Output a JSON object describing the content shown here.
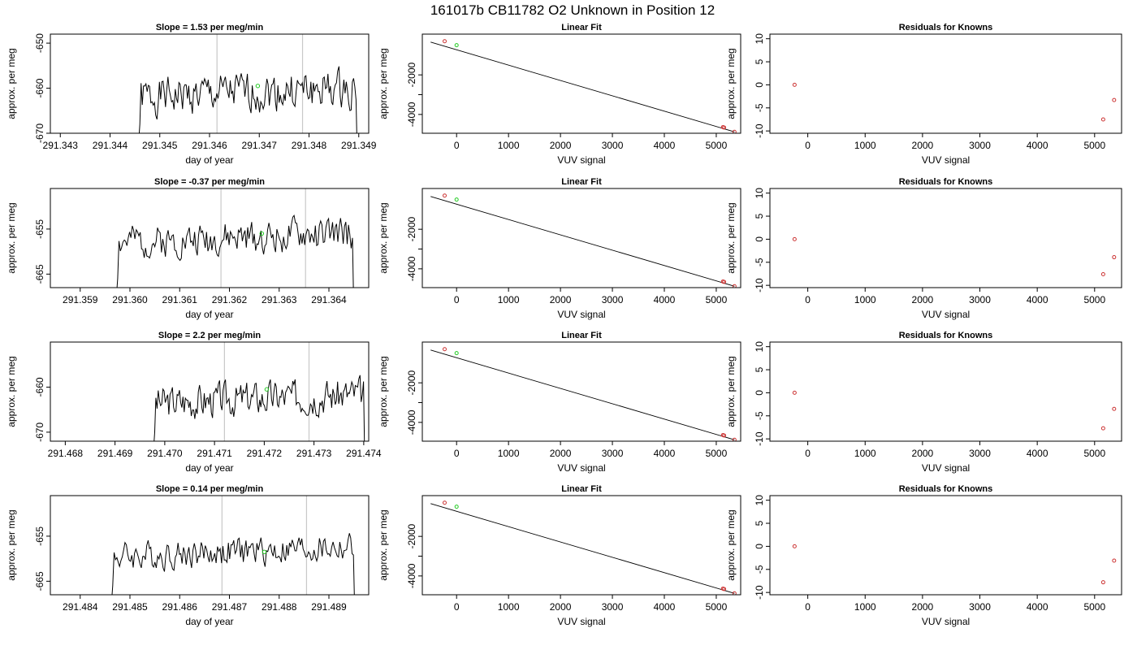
{
  "figure_title": "161017b      CB11782    O2 Unknown in Position  12",
  "chart_data": [
    {
      "type": "line",
      "title": "Slope =  1.53  per meg/min",
      "xlabel": "day of year",
      "ylabel": "approx. per meg",
      "xlim": [
        291.3428,
        291.3492
      ],
      "ylim": [
        -670,
        -648
      ],
      "xticks": [
        291.343,
        291.344,
        291.345,
        291.346,
        291.347,
        291.348,
        291.349
      ],
      "xtick_labels": [
        "291.343",
        "291.344",
        "291.345",
        "291.346",
        "291.347",
        "291.348",
        "291.349"
      ],
      "yticks": [
        -670,
        -660,
        -650
      ],
      "ytick_labels": [
        "-670",
        "-660",
        "-650"
      ],
      "vlines": [
        291.34615,
        291.34787
      ],
      "series_start": 291.34455,
      "series_end": 291.34897,
      "series_mean": -661,
      "series_amp": 4.2,
      "marker": {
        "x": 291.34697,
        "y": -659.5,
        "color": "#22cc22"
      },
      "seed": 1
    },
    {
      "type": "line",
      "title": "Linear Fit",
      "xlabel": "VUV signal",
      "ylabel": "approx. per meg",
      "xlim": [
        -660,
        5470
      ],
      "ylim": [
        -4950,
        60
      ],
      "xticks": [
        0,
        1000,
        2000,
        3000,
        4000,
        5000
      ],
      "xtick_labels": [
        "0",
        "1000",
        "2000",
        "3000",
        "4000",
        "5000"
      ],
      "yticks": [
        -4000,
        -3000,
        -2000
      ],
      "ytick_labels": [
        "-4000",
        "",
        "-2000"
      ],
      "line": {
        "x": [
          -500,
          5350
        ],
        "y": [
          -345,
          -4880
        ]
      },
      "points_known": {
        "x": [
          -230,
          5130,
          5150,
          5350
        ],
        "y": [
          -300,
          -4640,
          -4660,
          -4880
        ],
        "color": "#cc3333"
      },
      "points_unknown": {
        "x": [
          0
        ],
        "y": [
          -500
        ],
        "color": "#22cc22"
      }
    },
    {
      "type": "scatter",
      "title": "Residuals for Knowns",
      "xlabel": "VUV signal",
      "ylabel": "approx. per meg",
      "xlim": [
        -660,
        5470
      ],
      "ylim": [
        -10.5,
        11
      ],
      "xticks": [
        0,
        1000,
        2000,
        3000,
        4000,
        5000
      ],
      "xtick_labels": [
        "0",
        "1000",
        "2000",
        "3000",
        "4000",
        "5000"
      ],
      "yticks": [
        -10,
        -5,
        0,
        5,
        10
      ],
      "ytick_labels": [
        "-10",
        "-5",
        "0",
        "5",
        "10"
      ],
      "points": {
        "x": [
          -230,
          5150,
          5340
        ],
        "y": [
          0,
          -7.5,
          -3.3
        ],
        "color": "#cc3333"
      }
    },
    {
      "type": "line",
      "title": "Slope =  -0.37  per meg/min",
      "xlabel": "day of year",
      "ylabel": "approx. per meg",
      "xlim": [
        291.3584,
        291.3648
      ],
      "ylim": [
        -668,
        -646
      ],
      "xticks": [
        291.359,
        291.36,
        291.361,
        291.362,
        291.363,
        291.364
      ],
      "xtick_labels": [
        "291.359",
        "291.360",
        "291.361",
        "291.362",
        "291.363",
        "291.364"
      ],
      "yticks": [
        -665,
        -655
      ],
      "ytick_labels": [
        "-665",
        "-655"
      ],
      "vlines": [
        291.36183,
        291.36353
      ],
      "series_start": 291.3597,
      "series_end": 291.3645,
      "series_mean": -657,
      "series_amp": 3.6,
      "marker": {
        "x": 291.36265,
        "y": -656,
        "color": "#22cc22"
      },
      "seed": 2
    },
    {
      "type": "line",
      "title": "Linear Fit",
      "xlabel": "VUV signal",
      "ylabel": "approx. per meg",
      "xlim": [
        -660,
        5470
      ],
      "ylim": [
        -4950,
        60
      ],
      "xticks": [
        0,
        1000,
        2000,
        3000,
        4000,
        5000
      ],
      "xtick_labels": [
        "0",
        "1000",
        "2000",
        "3000",
        "4000",
        "5000"
      ],
      "yticks": [
        -4000,
        -3000,
        -2000
      ],
      "ytick_labels": [
        "-4000",
        "",
        "-2000"
      ],
      "line": {
        "x": [
          -500,
          5350
        ],
        "y": [
          -345,
          -4880
        ]
      },
      "points_known": {
        "x": [
          -230,
          5130,
          5150,
          5350
        ],
        "y": [
          -300,
          -4640,
          -4660,
          -4880
        ],
        "color": "#cc3333"
      },
      "points_unknown": {
        "x": [
          0
        ],
        "y": [
          -500
        ],
        "color": "#22cc22"
      }
    },
    {
      "type": "scatter",
      "title": "Residuals for Knowns",
      "xlabel": "VUV signal",
      "ylabel": "approx. per meg",
      "xlim": [
        -660,
        5470
      ],
      "ylim": [
        -10.5,
        11
      ],
      "xticks": [
        0,
        1000,
        2000,
        3000,
        4000,
        5000
      ],
      "xtick_labels": [
        "0",
        "1000",
        "2000",
        "3000",
        "4000",
        "5000"
      ],
      "yticks": [
        -10,
        -5,
        0,
        5,
        10
      ],
      "ytick_labels": [
        "-10",
        "-5",
        "0",
        "5",
        "10"
      ],
      "points": {
        "x": [
          -230,
          5150,
          5340
        ],
        "y": [
          0,
          -7.6,
          -3.9
        ],
        "color": "#cc3333"
      }
    },
    {
      "type": "line",
      "title": "Slope =  2.2  per meg/min",
      "xlabel": "day of year",
      "ylabel": "approx. per meg",
      "xlim": [
        291.4677,
        291.4741
      ],
      "ylim": [
        -672,
        -650
      ],
      "xticks": [
        291.468,
        291.469,
        291.47,
        291.471,
        291.472,
        291.473,
        291.474
      ],
      "xtick_labels": [
        "291.468",
        "291.469",
        "291.470",
        "291.471",
        "291.472",
        "291.473",
        "291.474"
      ],
      "yticks": [
        -670,
        -660
      ],
      "ytick_labels": [
        "-670",
        "-660"
      ],
      "vlines": [
        291.4712,
        291.4729
      ],
      "series_start": 291.46975,
      "series_end": 291.47402,
      "series_mean": -662.5,
      "series_amp": 3.8,
      "marker": {
        "x": 291.47205,
        "y": -660.5,
        "color": "#22cc22"
      },
      "seed": 3
    },
    {
      "type": "line",
      "title": "Linear Fit",
      "xlabel": "VUV signal",
      "ylabel": "approx. per meg",
      "xlim": [
        -660,
        5470
      ],
      "ylim": [
        -4950,
        60
      ],
      "xticks": [
        0,
        1000,
        2000,
        3000,
        4000,
        5000
      ],
      "xtick_labels": [
        "0",
        "1000",
        "2000",
        "3000",
        "4000",
        "5000"
      ],
      "yticks": [
        -4000,
        -3000,
        -2000
      ],
      "ytick_labels": [
        "-4000",
        "",
        "-2000"
      ],
      "line": {
        "x": [
          -500,
          5350
        ],
        "y": [
          -345,
          -4880
        ]
      },
      "points_known": {
        "x": [
          -230,
          5130,
          5150,
          5350
        ],
        "y": [
          -300,
          -4640,
          -4660,
          -4880
        ],
        "color": "#cc3333"
      },
      "points_unknown": {
        "x": [
          0
        ],
        "y": [
          -500
        ],
        "color": "#22cc22"
      }
    },
    {
      "type": "scatter",
      "title": "Residuals for Knowns",
      "xlabel": "VUV signal",
      "ylabel": "approx. per meg",
      "xlim": [
        -660,
        5470
      ],
      "ylim": [
        -10.5,
        11
      ],
      "xticks": [
        0,
        1000,
        2000,
        3000,
        4000,
        5000
      ],
      "xtick_labels": [
        "0",
        "1000",
        "2000",
        "3000",
        "4000",
        "5000"
      ],
      "yticks": [
        -10,
        -5,
        0,
        5,
        10
      ],
      "ytick_labels": [
        "-10",
        "-5",
        "0",
        "5",
        "10"
      ],
      "points": {
        "x": [
          -230,
          5150,
          5340
        ],
        "y": [
          0,
          -7.7,
          -3.5
        ],
        "color": "#cc3333"
      }
    },
    {
      "type": "line",
      "title": "Slope =  0.14  per meg/min",
      "xlabel": "day of year",
      "ylabel": "approx. per meg",
      "xlim": [
        291.4834,
        291.4898
      ],
      "ylim": [
        -668,
        -646
      ],
      "xticks": [
        291.484,
        291.485,
        291.486,
        291.487,
        291.488,
        291.489
      ],
      "xtick_labels": [
        "291.484",
        "291.485",
        "291.486",
        "291.487",
        "291.488",
        "291.489"
      ],
      "yticks": [
        -665,
        -655
      ],
      "ytick_labels": [
        "-665",
        "-655"
      ],
      "vlines": [
        291.48685,
        291.48855
      ],
      "series_start": 291.4846,
      "series_end": 291.48952,
      "series_mean": -658.5,
      "series_amp": 3.2,
      "marker": {
        "x": 291.4877,
        "y": -658.5,
        "color": "#22cc22"
      },
      "seed": 4
    },
    {
      "type": "line",
      "title": "Linear Fit",
      "xlabel": "VUV signal",
      "ylabel": "approx. per meg",
      "xlim": [
        -660,
        5470
      ],
      "ylim": [
        -4950,
        60
      ],
      "xticks": [
        0,
        1000,
        2000,
        3000,
        4000,
        5000
      ],
      "xtick_labels": [
        "0",
        "1000",
        "2000",
        "3000",
        "4000",
        "5000"
      ],
      "yticks": [
        -4000,
        -3000,
        -2000
      ],
      "ytick_labels": [
        "-4000",
        "",
        "-2000"
      ],
      "line": {
        "x": [
          -500,
          5350
        ],
        "y": [
          -345,
          -4880
        ]
      },
      "points_known": {
        "x": [
          -230,
          5130,
          5150,
          5350
        ],
        "y": [
          -300,
          -4640,
          -4660,
          -4880
        ],
        "color": "#cc3333"
      },
      "points_unknown": {
        "x": [
          0
        ],
        "y": [
          -500
        ],
        "color": "#22cc22"
      }
    },
    {
      "type": "scatter",
      "title": "Residuals for Knowns",
      "xlabel": "VUV signal",
      "ylabel": "approx. per meg",
      "xlim": [
        -660,
        5470
      ],
      "ylim": [
        -10.5,
        11
      ],
      "xticks": [
        0,
        1000,
        2000,
        3000,
        4000,
        5000
      ],
      "xtick_labels": [
        "0",
        "1000",
        "2000",
        "3000",
        "4000",
        "5000"
      ],
      "yticks": [
        -10,
        -5,
        0,
        5,
        10
      ],
      "ytick_labels": [
        "-10",
        "-5",
        "0",
        "5",
        "10"
      ],
      "points": {
        "x": [
          -230,
          5150,
          5340
        ],
        "y": [
          0,
          -7.8,
          -3.1
        ],
        "color": "#cc3333"
      }
    }
  ]
}
